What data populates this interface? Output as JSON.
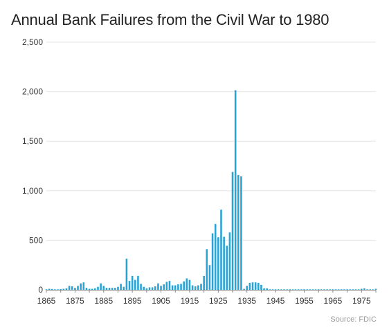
{
  "chart_data": {
    "type": "bar",
    "title": "Annual Bank Failures from the Civil War to 1980",
    "source": "Source: FDIC",
    "xlabel": "",
    "ylabel": "",
    "x_start": 1865,
    "x_end": 1980,
    "x_ticks": [
      "1865",
      "1875",
      "1885",
      "1895",
      "1905",
      "1915",
      "1925",
      "1935",
      "1945",
      "1955",
      "1965",
      "1975"
    ],
    "y_ticks": [
      "0",
      "500",
      "1,000",
      "1,500",
      "2,000",
      "2,500"
    ],
    "ylim": [
      0,
      2500
    ],
    "grid": true,
    "color": "#29a3d6",
    "years": [
      1865,
      1866,
      1867,
      1868,
      1869,
      1870,
      1871,
      1872,
      1873,
      1874,
      1875,
      1876,
      1877,
      1878,
      1879,
      1880,
      1881,
      1882,
      1883,
      1884,
      1885,
      1886,
      1887,
      1888,
      1889,
      1890,
      1891,
      1892,
      1893,
      1894,
      1895,
      1896,
      1897,
      1898,
      1899,
      1900,
      1901,
      1902,
      1903,
      1904,
      1905,
      1906,
      1907,
      1908,
      1909,
      1910,
      1911,
      1912,
      1913,
      1914,
      1915,
      1916,
      1917,
      1918,
      1919,
      1920,
      1921,
      1922,
      1923,
      1924,
      1925,
      1926,
      1927,
      1928,
      1929,
      1930,
      1931,
      1932,
      1933,
      1934,
      1935,
      1936,
      1937,
      1938,
      1939,
      1940,
      1941,
      1942,
      1943,
      1944,
      1945,
      1946,
      1947,
      1948,
      1949,
      1950,
      1951,
      1952,
      1953,
      1954,
      1955,
      1956,
      1957,
      1958,
      1959,
      1960,
      1961,
      1962,
      1963,
      1964,
      1965,
      1966,
      1967,
      1968,
      1969,
      1970,
      1971,
      1972,
      1973,
      1974,
      1975,
      1976,
      1977,
      1978,
      1979,
      1980
    ],
    "values": [
      5,
      10,
      8,
      5,
      5,
      8,
      10,
      15,
      40,
      35,
      20,
      40,
      65,
      75,
      20,
      10,
      10,
      15,
      30,
      65,
      40,
      20,
      20,
      20,
      20,
      30,
      60,
      30,
      315,
      90,
      140,
      100,
      140,
      60,
      30,
      15,
      25,
      25,
      35,
      65,
      40,
      55,
      80,
      90,
      45,
      45,
      55,
      60,
      85,
      115,
      100,
      45,
      35,
      45,
      60,
      140,
      410,
      250,
      570,
      665,
      530,
      810,
      535,
      445,
      580,
      1190,
      2015,
      1160,
      1145,
      10,
      40,
      70,
      75,
      75,
      70,
      50,
      15,
      15,
      5,
      5,
      5,
      5,
      5,
      5,
      5,
      5,
      5,
      5,
      5,
      5,
      5,
      5,
      5,
      5,
      5,
      5,
      5,
      5,
      5,
      5,
      5,
      5,
      5,
      5,
      5,
      5,
      5,
      5,
      5,
      5,
      10,
      15,
      5,
      5,
      5,
      10
    ]
  }
}
